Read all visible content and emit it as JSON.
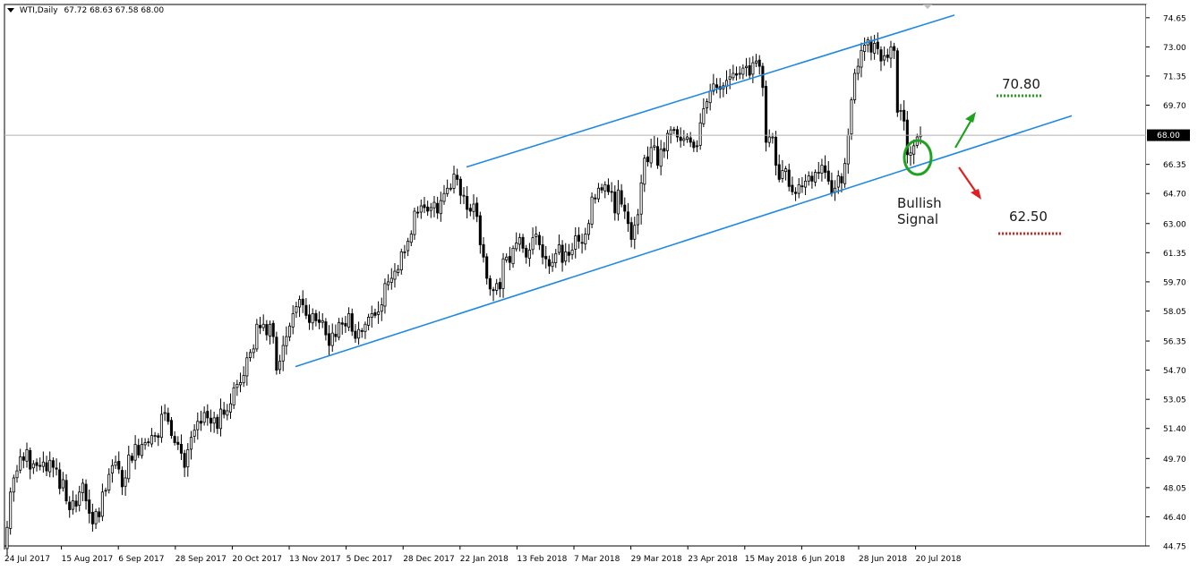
{
  "header": {
    "symbol": "WTI,Daily",
    "ohlc": "67.72 68.63 67.58 68.00"
  },
  "current_price_label": "68.00",
  "colors": {
    "up_candle": "#ffffff",
    "down_candle": "#000000",
    "channel": "#1e88e5",
    "target_up": "#1fa21f",
    "target_down": "#e02020",
    "highlight": "#1fa21f",
    "current_badge_bg": "#000000"
  },
  "annotations": {
    "upper_target": "70.80",
    "lower_target": "62.50",
    "signal_line1": "Bullish",
    "signal_line2": "Signal",
    "arrow_up_icon": "arrow-up-right",
    "arrow_down_icon": "arrow-down-right"
  },
  "chart_data": {
    "type": "candlestick",
    "title": "",
    "ylim": [
      44.75,
      75.4
    ],
    "yticks": [
      "74.65",
      "73.00",
      "71.35",
      "69.70",
      "68.00",
      "66.35",
      "64.70",
      "63.00",
      "61.35",
      "59.70",
      "58.05",
      "56.35",
      "54.70",
      "53.05",
      "51.40",
      "49.70",
      "48.05",
      "46.40",
      "44.75"
    ],
    "xticks": [
      "24 Jul 2017",
      "15 Aug 2017",
      "6 Sep 2017",
      "28 Sep 2017",
      "20 Oct 2017",
      "13 Nov 2017",
      "5 Dec 2017",
      "28 Dec 2017",
      "22 Jan 2018",
      "13 Feb 2018",
      "7 Mar 2018",
      "29 Mar 2018",
      "23 Apr 2018",
      "15 May 2018",
      "6 Jun 2018",
      "28 Jun 2018",
      "20 Jul 2018"
    ],
    "closes": [
      45.8,
      47.8,
      48.6,
      49.0,
      49.8,
      49.6,
      50.2,
      49.1,
      49.4,
      49.3,
      49.3,
      49.5,
      49.0,
      49.6,
      49.2,
      49.1,
      48.0,
      48.5,
      47.3,
      46.8,
      47.3,
      47.0,
      47.8,
      48.3,
      47.3,
      46.6,
      46.0,
      46.7,
      46.4,
      47.8,
      47.9,
      48.8,
      49.3,
      49.5,
      49.1,
      48.1,
      48.6,
      49.9,
      49.6,
      50.5,
      49.9,
      50.5,
      50.6,
      50.6,
      51.0,
      51.0,
      50.9,
      52.2,
      52.3,
      51.8,
      51.0,
      50.6,
      50.5,
      50.0,
      49.2,
      50.2,
      50.9,
      51.3,
      51.8,
      51.7,
      52.3,
      52.0,
      51.7,
      52.0,
      51.4,
      52.5,
      52.2,
      52.4,
      52.8,
      53.7,
      53.9,
      54.0,
      54.4,
      55.4,
      55.7,
      55.9,
      57.3,
      57.1,
      57.3,
      56.7,
      57.3,
      56.6,
      54.7,
      55.2,
      56.1,
      56.6,
      57.2,
      57.9,
      58.3,
      58.7,
      58.4,
      57.8,
      57.4,
      57.9,
      57.5,
      57.4,
      57.5,
      56.7,
      56.1,
      56.8,
      56.6,
      57.4,
      57.3,
      57.2,
      57.9,
      56.9,
      56.5,
      57.0,
      56.9,
      57.3,
      57.7,
      57.9,
      57.8,
      58.0,
      58.4,
      59.6,
      59.7,
      59.9,
      60.3,
      60.4,
      61.4,
      61.4,
      62.0,
      62.4,
      63.7,
      63.6,
      64.0,
      63.9,
      63.7,
      63.9,
      64.2,
      63.6,
      64.3,
      64.7,
      65.0,
      65.0,
      65.8,
      65.5,
      64.6,
      64.6,
      63.8,
      63.7,
      64.1,
      63.4,
      61.8,
      61.1,
      59.9,
      59.3,
      59.2,
      59.6,
      59.3,
      61.0,
      61.1,
      60.8,
      61.6,
      61.9,
      62.2,
      61.6,
      61.1,
      61.5,
      62.2,
      62.4,
      61.8,
      61.1,
      61.0,
      60.6,
      60.8,
      61.3,
      61.8,
      60.8,
      61.4,
      61.2,
      61.5,
      62.3,
      62.0,
      61.9,
      62.4,
      63.0,
      64.5,
      64.4,
      65.0,
      64.9,
      65.2,
      64.8,
      64.8,
      63.6,
      64.9,
      64.1,
      63.7,
      63.0,
      62.1,
      62.9,
      63.5,
      65.3,
      66.7,
      66.5,
      67.3,
      67.4,
      66.3,
      67.2,
      67.1,
      68.1,
      68.3,
      68.3,
      67.9,
      67.7,
      67.8,
      67.9,
      67.6,
      67.3,
      67.4,
      68.7,
      69.5,
      69.9,
      70.5,
      70.9,
      70.7,
      70.6,
      70.8,
      71.1,
      71.3,
      71.5,
      71.4,
      71.5,
      71.8,
      71.9,
      71.4,
      72.1,
      72.2,
      71.9,
      70.7,
      67.6,
      67.9,
      67.9,
      66.3,
      65.5,
      66.0,
      66.1,
      65.1,
      64.8,
      64.7,
      65.2,
      65.1,
      65.4,
      65.7,
      65.4,
      65.9,
      65.9,
      66.3,
      65.9,
      65.4,
      64.7,
      65.0,
      65.7,
      65.3,
      66.4,
      68.0,
      70.0,
      71.5,
      71.9,
      72.8,
      73.1,
      73.4,
      72.7,
      73.2,
      72.9,
      72.2,
      72.5,
      72.4,
      73.0,
      72.8,
      69.3,
      69.4,
      68.8,
      66.9,
      67.0,
      67.4,
      67.9,
      68.0
    ],
    "channel": {
      "upper": {
        "from": [
          "22 Jan 2018",
          66.2
        ],
        "to": [
          "beyond 20 Jul 2018",
          74.8
        ]
      },
      "lower": {
        "from": [
          "13 Nov 2017",
          54.9
        ],
        "to": [
          "beyond 20 Jul 2018",
          69.1
        ]
      }
    },
    "current_price": 68.0,
    "targets": {
      "upper": 70.8,
      "lower": 62.5
    }
  }
}
